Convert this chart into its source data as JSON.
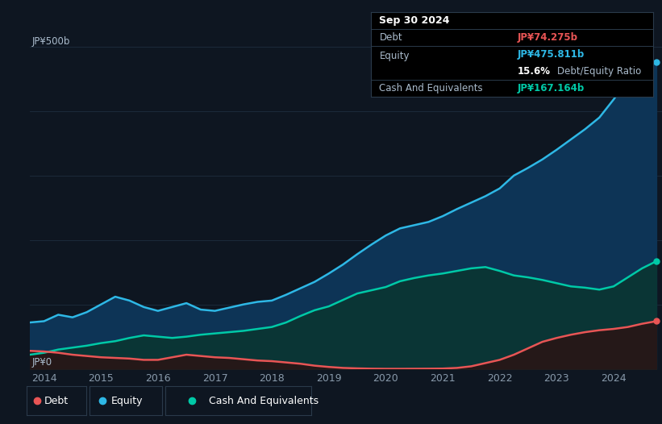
{
  "bg_color": "#0e1621",
  "plot_bg_color": "#0e1621",
  "grid_color": "#1c2a3a",
  "title_date": "Sep 30 2024",
  "debt_label": "Debt",
  "equity_label": "Equity",
  "cash_label": "Cash And Equivalents",
  "debt_value": "JP¥74.275b",
  "equity_value": "JP¥475.811b",
  "cash_value": "JP¥167.164b",
  "ratio_pct": "15.6%",
  "ratio_text": " Debt/Equity Ratio",
  "y_label_top": "JP¥500b",
  "y_label_bottom": "JP¥0",
  "debt_color": "#e85555",
  "equity_color": "#2eb8e6",
  "cash_color": "#00c9a7",
  "equity_fill_color": "#0d3456",
  "cash_fill_color": "#0a3535",
  "debt_fill_color": "#251818",
  "x_ticks": [
    2014,
    2015,
    2016,
    2017,
    2018,
    2019,
    2020,
    2021,
    2022,
    2023,
    2024
  ],
  "years": [
    2013.75,
    2014.0,
    2014.25,
    2014.5,
    2014.75,
    2015.0,
    2015.25,
    2015.5,
    2015.75,
    2016.0,
    2016.25,
    2016.5,
    2016.75,
    2017.0,
    2017.25,
    2017.5,
    2017.75,
    2018.0,
    2018.25,
    2018.5,
    2018.75,
    2019.0,
    2019.25,
    2019.5,
    2019.75,
    2020.0,
    2020.25,
    2020.5,
    2020.75,
    2021.0,
    2021.25,
    2021.5,
    2021.75,
    2022.0,
    2022.25,
    2022.5,
    2022.75,
    2023.0,
    2023.25,
    2023.5,
    2023.75,
    2024.0,
    2024.25,
    2024.5,
    2024.75
  ],
  "equity": [
    72,
    74,
    84,
    80,
    88,
    100,
    112,
    106,
    96,
    90,
    96,
    102,
    92,
    90,
    95,
    100,
    104,
    106,
    115,
    125,
    135,
    148,
    162,
    178,
    193,
    207,
    218,
    223,
    228,
    237,
    248,
    258,
    268,
    280,
    300,
    312,
    325,
    340,
    356,
    372,
    390,
    418,
    448,
    468,
    476
  ],
  "cash": [
    22,
    25,
    30,
    33,
    36,
    40,
    43,
    48,
    52,
    50,
    48,
    50,
    53,
    55,
    57,
    59,
    62,
    65,
    72,
    82,
    91,
    97,
    107,
    117,
    122,
    127,
    136,
    141,
    145,
    148,
    152,
    156,
    158,
    152,
    145,
    142,
    138,
    133,
    128,
    126,
    123,
    128,
    142,
    156,
    167
  ],
  "debt": [
    28,
    27,
    25,
    22,
    20,
    18,
    17,
    16,
    14,
    14,
    18,
    22,
    20,
    18,
    17,
    15,
    13,
    12,
    10,
    8,
    5,
    3,
    1.5,
    0.8,
    0.3,
    0.1,
    0.1,
    0.2,
    0.3,
    0.5,
    1.5,
    4,
    9,
    14,
    22,
    32,
    42,
    48,
    53,
    57,
    60,
    62,
    65,
    70,
    74
  ],
  "ylim": [
    0,
    500
  ],
  "xlim": [
    2013.75,
    2024.85
  ]
}
